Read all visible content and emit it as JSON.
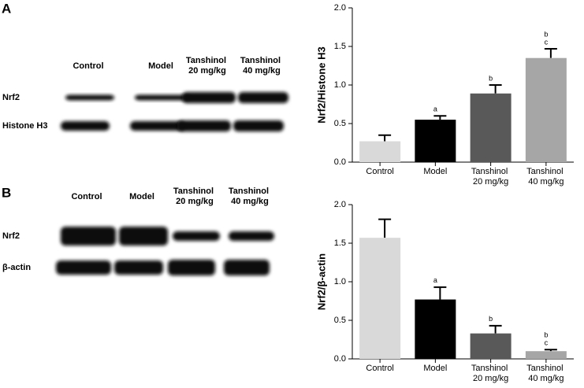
{
  "chart_data": [
    {
      "type": "bar",
      "panel": "A",
      "blot": {
        "lanes": [
          "Control",
          "Model",
          "Tanshinol 20 mg/kg",
          "Tanshinol 40 mg/kg"
        ],
        "rows": [
          "Nrf2",
          "Histone H3"
        ]
      },
      "ylabel": "Nrf2/Histone H3",
      "categories": [
        "Control",
        "Model",
        "Tanshinol 20 mg/kg",
        "Tanshinol 40 mg/kg"
      ],
      "values": [
        0.27,
        0.55,
        0.89,
        1.35
      ],
      "errors": [
        0.08,
        0.05,
        0.11,
        0.12
      ],
      "sig_labels": [
        [],
        [
          "a"
        ],
        [
          "b"
        ],
        [
          "b",
          "c"
        ]
      ],
      "colors": [
        "#d9d9d9",
        "#000000",
        "#595959",
        "#a6a6a6"
      ],
      "ylim": [
        0,
        2
      ],
      "yticks": [
        {
          "value": 0,
          "label": "0.0"
        },
        0.5,
        {
          "value": 1,
          "label": "1.0"
        },
        1.5,
        {
          "value": 2,
          "label": "2.0"
        }
      ]
    },
    {
      "type": "bar",
      "panel": "B",
      "blot": {
        "lanes": [
          "Control",
          "Model",
          "Tanshinol 20 mg/kg",
          "Tanshinol 40 mg/kg"
        ],
        "rows": [
          "Nrf2",
          "β-actin"
        ]
      },
      "ylabel": "Nrf2/β-actin",
      "categories": [
        "Control",
        "Model",
        "Tanshinol 20 mg/kg",
        "Tanshinol 40 mg/kg"
      ],
      "values": [
        1.57,
        0.77,
        0.33,
        0.1
      ],
      "errors": [
        0.24,
        0.16,
        0.1,
        0.02
      ],
      "sig_labels": [
        [],
        [
          "a"
        ],
        [
          "b"
        ],
        [
          "b",
          "c"
        ]
      ],
      "colors": [
        "#d9d9d9",
        "#000000",
        "#595959",
        "#a6a6a6"
      ],
      "ylim": [
        0,
        2
      ],
      "yticks": [
        {
          "value": 0,
          "label": "0.0"
        },
        0.5,
        {
          "value": 1,
          "label": "1.0"
        },
        1.5,
        {
          "value": 2,
          "label": "2.0"
        }
      ]
    }
  ]
}
